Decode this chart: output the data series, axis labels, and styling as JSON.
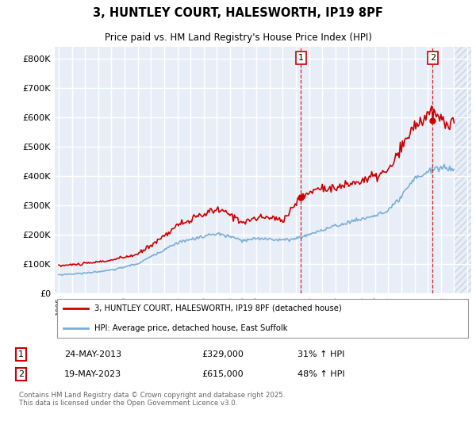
{
  "title": "3, HUNTLEY COURT, HALESWORTH, IP19 8PF",
  "subtitle": "Price paid vs. HM Land Registry's House Price Index (HPI)",
  "property_label": "3, HUNTLEY COURT, HALESWORTH, IP19 8PF (detached house)",
  "hpi_label": "HPI: Average price, detached house, East Suffolk",
  "footnote": "Contains HM Land Registry data © Crown copyright and database right 2025.\nThis data is licensed under the Open Government Licence v3.0.",
  "sale1_date": "24-MAY-2013",
  "sale1_price": "£329,000",
  "sale1_hpi": "31% ↑ HPI",
  "sale2_date": "19-MAY-2023",
  "sale2_price": "£615,000",
  "sale2_hpi": "48% ↑ HPI",
  "line_color_property": "#cc0000",
  "line_color_hpi": "#7bafd4",
  "vline_color": "#cc0000",
  "background_color": "#e8eef8",
  "grid_color": "#ffffff",
  "hatch_color": "#d0d8e8",
  "ylim": [
    0,
    840000
  ],
  "yticks": [
    0,
    100000,
    200000,
    300000,
    400000,
    500000,
    600000,
    700000,
    800000
  ],
  "xlim_start": 1994.7,
  "xlim_end": 2026.3,
  "sale1_x": 2013.38,
  "sale2_x": 2023.38,
  "hatch_start": 2025.0
}
